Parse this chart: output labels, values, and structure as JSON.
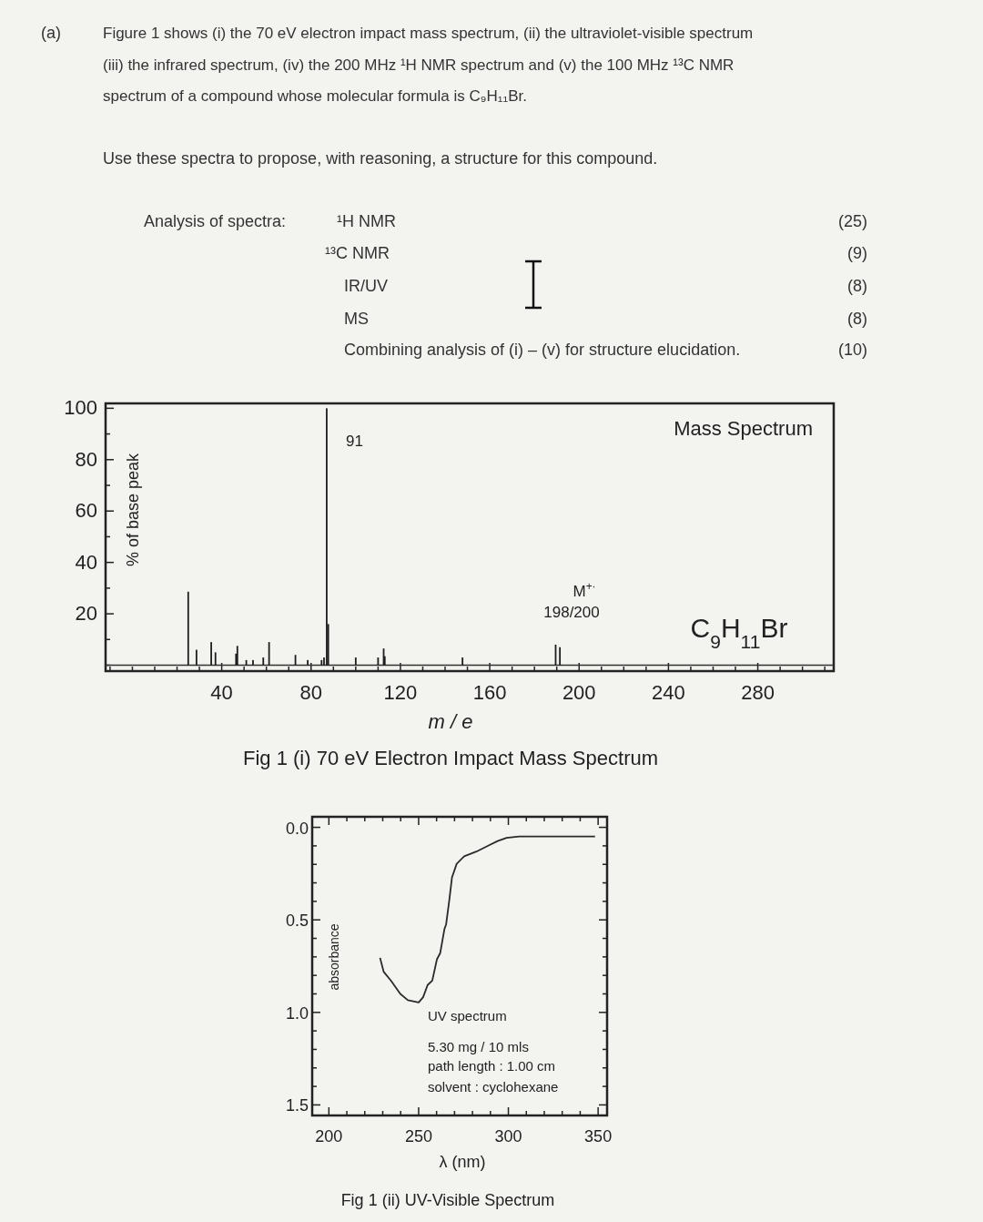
{
  "chart_data": [
    {
      "type": "other",
      "annotations": [
        "(a)",
        "Figure 1 shows (i) the 70 eV electron impact mass spectrum, (ii) the ultraviolet-visible spectrum",
        "(iii) the infrared spectrum, (iv) the 200 MHz ¹H NMR spectrum and (v) the 100 MHz ¹³C NMR",
        "spectrum of a compound whose molecular formula is C₉H₁₁Br.",
        "Use these spectra to propose, with reasoning, a structure for this compound.",
        "Analysis of spectra:",
        "¹H NMR",
        "(25)",
        "¹³C NMR",
        "(9)",
        "IR/UV",
        "(8)",
        "MS",
        "(8)",
        "Combining analysis of (i) – (v) for structure elucidation.",
        "(10)"
      ]
    },
    {
      "type": "bar",
      "title": "Fig 1 (i) 70 eV Electron Impact Mass Spectrum",
      "xlabel": "m / e",
      "ylabel": "% of base peak",
      "color": "#1e1e1e",
      "x": [
        25,
        28.7,
        35.3,
        37.2,
        46.4,
        47,
        51,
        54,
        58.6,
        61.2,
        73,
        78.5,
        84.7,
        85.8,
        87,
        87.7,
        100,
        110,
        112.5,
        113,
        147.8,
        189.5,
        191.4
      ],
      "values": [
        28.6,
        6,
        9,
        5,
        4.5,
        7.5,
        2,
        2,
        3,
        9,
        4,
        2,
        2,
        3,
        100,
        16,
        3,
        3,
        6.5,
        3.5,
        3,
        8,
        7
      ],
      "xlim": [
        -12,
        314
      ],
      "ylim": [
        -2.3,
        101.9
      ],
      "xticks": [
        {
          "value": -10,
          "label": null
        },
        {
          "value": 0,
          "label": null
        },
        {
          "value": 10,
          "label": null
        },
        {
          "value": 20,
          "label": null
        },
        {
          "value": 30,
          "label": null
        },
        40,
        {
          "value": 50,
          "label": null
        },
        {
          "value": 60,
          "label": null
        },
        {
          "value": 70,
          "label": null
        },
        80,
        {
          "value": 90,
          "label": null
        },
        {
          "value": 100,
          "label": null
        },
        {
          "value": 110,
          "label": null
        },
        120,
        {
          "value": 130,
          "label": null
        },
        {
          "value": 140,
          "label": null
        },
        {
          "value": 150,
          "label": null
        },
        160,
        {
          "value": 170,
          "label": null
        },
        {
          "value": 180,
          "label": null
        },
        {
          "value": 190,
          "label": null
        },
        200,
        {
          "value": 210,
          "label": null
        },
        {
          "value": 220,
          "label": null
        },
        {
          "value": 230,
          "label": null
        },
        240,
        {
          "value": 250,
          "label": null
        },
        {
          "value": 260,
          "label": null
        },
        {
          "value": 270,
          "label": null
        },
        280,
        {
          "value": 290,
          "label": null
        },
        {
          "value": 300,
          "label": null
        },
        {
          "value": 310,
          "label": null
        }
      ],
      "yticks": [
        {
          "value": 0,
          "label": null
        },
        {
          "value": 10,
          "label": null
        },
        20,
        {
          "value": 30,
          "label": null
        },
        40,
        {
          "value": 50,
          "label": null
        },
        60,
        {
          "value": 70,
          "label": null
        },
        80,
        {
          "value": 90,
          "label": null
        },
        100
      ],
      "ref_lines": [
        {
          "axis": "y",
          "value": 0
        }
      ],
      "annotations": [
        "91",
        "M$^{+·}$",
        "198/200",
        "Mass Spectrum",
        "C$_{9}$H$_{11}$Br"
      ]
    },
    {
      "type": "line",
      "title": "Fig 1 (ii) UV-Visible Spectrum",
      "xlabel": "λ (nm)",
      "ylabel": "absorbance",
      "color": "#2a2a2a",
      "x": [
        228.5,
        230.5,
        234.7,
        239.8,
        244,
        250,
        252.5,
        255,
        257.6,
        260.2,
        262,
        264.4,
        265.3,
        267,
        268.6,
        271.2,
        275.4,
        282.2,
        289,
        294,
        299,
        306,
        348.3
      ],
      "values": [
        0.705,
        0.78,
        0.83,
        0.9,
        0.934,
        0.946,
        0.918,
        0.852,
        0.828,
        0.713,
        0.68,
        0.549,
        0.525,
        0.4,
        0.27,
        0.197,
        0.156,
        0.131,
        0.098,
        0.074,
        0.057,
        0.049,
        0.049
      ],
      "xlim": [
        190.7,
        355
      ],
      "ylim": [
        1.557,
        -0.057
      ],
      "xticks": [
        200,
        {
          "value": 210,
          "label": null
        },
        {
          "value": 220,
          "label": null
        },
        {
          "value": 230,
          "label": null
        },
        {
          "value": 240,
          "label": null
        },
        250,
        {
          "value": 260,
          "label": null
        },
        {
          "value": 270,
          "label": null
        },
        {
          "value": 280,
          "label": null
        },
        {
          "value": 290,
          "label": null
        },
        300,
        {
          "value": 310,
          "label": null
        },
        {
          "value": 320,
          "label": null
        },
        {
          "value": 330,
          "label": null
        },
        {
          "value": 340,
          "label": null
        },
        350
      ],
      "yticks": [
        {
          "value": 0,
          "label": "0.0"
        },
        {
          "value": 0.1,
          "label": null
        },
        {
          "value": 0.2,
          "label": null
        },
        {
          "value": 0.3,
          "label": null
        },
        {
          "value": 0.4,
          "label": null
        },
        0.5,
        {
          "value": 0.6,
          "label": null
        },
        {
          "value": 0.7,
          "label": null
        },
        {
          "value": 0.8,
          "label": null
        },
        {
          "value": 0.9,
          "label": null
        },
        {
          "value": 1,
          "label": "1.0"
        },
        {
          "value": 1.1,
          "label": null
        },
        {
          "value": 1.2,
          "label": null
        },
        {
          "value": 1.3,
          "label": null
        },
        {
          "value": 1.4,
          "label": null
        },
        1.5
      ],
      "annotations": [
        "UV spectrum",
        "5.30 mg / 10 mls",
        "path length : 1.00 cm",
        "solvent : cyclohexane"
      ]
    }
  ]
}
